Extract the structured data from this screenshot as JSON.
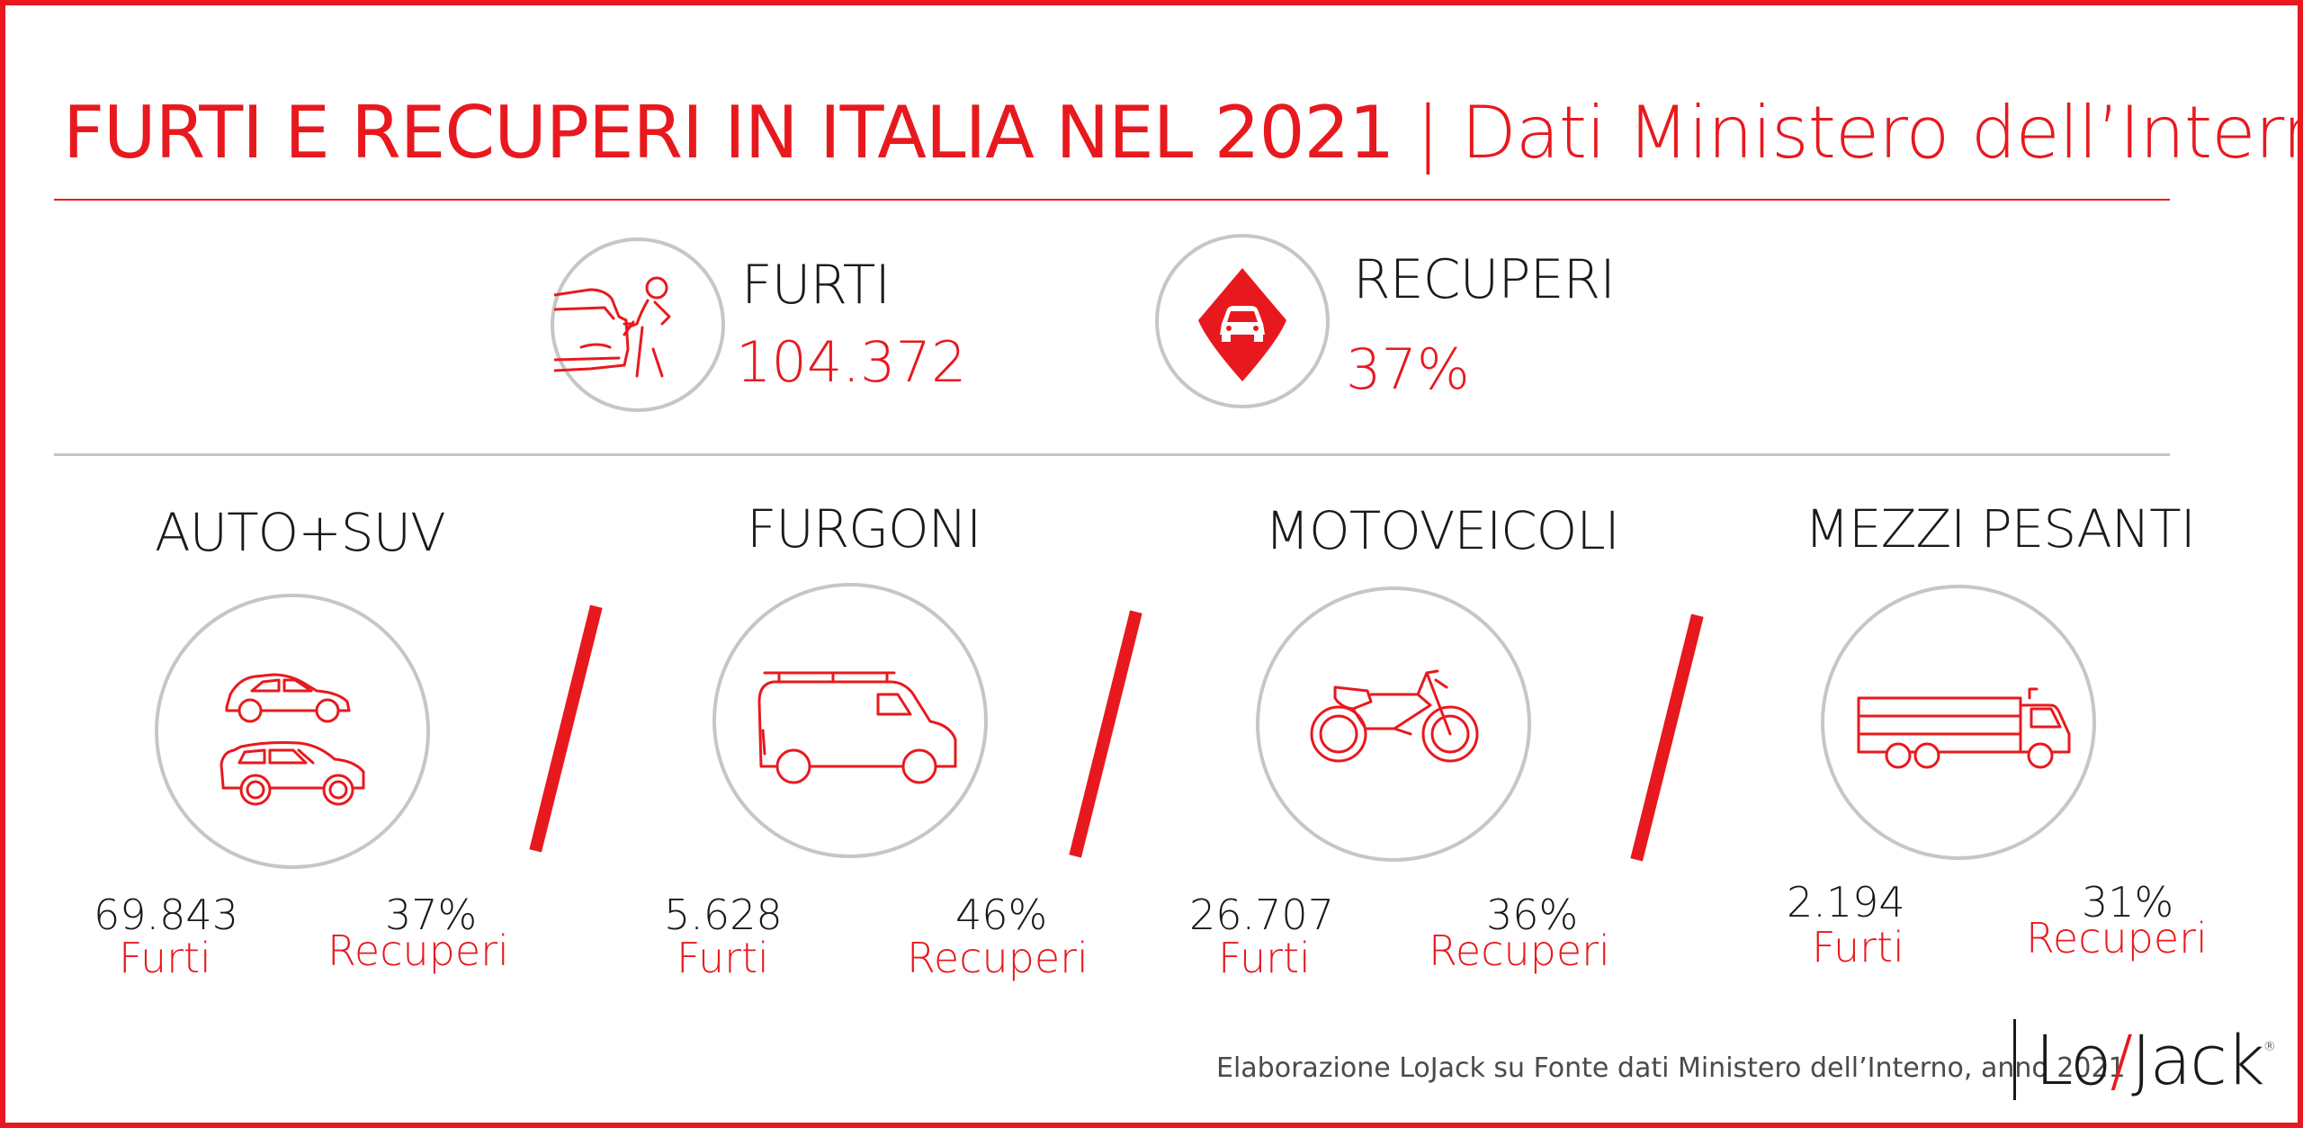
{
  "title": {
    "main": "FURTI E RECUPERI IN ITALIA NEL 2021",
    "separator": "|",
    "source": "Dati Ministero dell’Interno"
  },
  "totals": {
    "furti": {
      "label": "FURTI",
      "value": "104.372",
      "icon": "car-thief-icon"
    },
    "recuperi": {
      "label": "RECUPERI",
      "value": "37%",
      "icon": "map-pin-car-icon"
    }
  },
  "categories": [
    {
      "label": "AUTO+SUV",
      "icon": "car-suv-icon",
      "furti_value": "69.843",
      "furti_label": "Furti",
      "recuperi_value": "37%",
      "recuperi_label": "Recuperi"
    },
    {
      "label": "FURGONI",
      "icon": "van-icon",
      "furti_value": "5.628",
      "furti_label": "Furti",
      "recuperi_value": "46%",
      "recuperi_label": "Recuperi"
    },
    {
      "label": "MOTOVEICOLI",
      "icon": "motorcycle-icon",
      "furti_value": "26.707",
      "furti_label": "Furti",
      "recuperi_value": "36%",
      "recuperi_label": "Recuperi"
    },
    {
      "label": "MEZZI PESANTI",
      "icon": "truck-icon",
      "furti_value": "2.194",
      "furti_label": "Furti",
      "recuperi_value": "31%",
      "recuperi_label": "Recuperi"
    }
  ],
  "footer": {
    "credit": "Elaborazione LoJack su Fonte dati Ministero dell’Interno, anno 2021",
    "logo_left": "Lo",
    "logo_slash": "/",
    "logo_right": "Jack",
    "logo_mark": "®"
  },
  "colors": {
    "accent": "#e8191e",
    "circle": "#c4c7c5",
    "text": "#1a1a1a"
  }
}
